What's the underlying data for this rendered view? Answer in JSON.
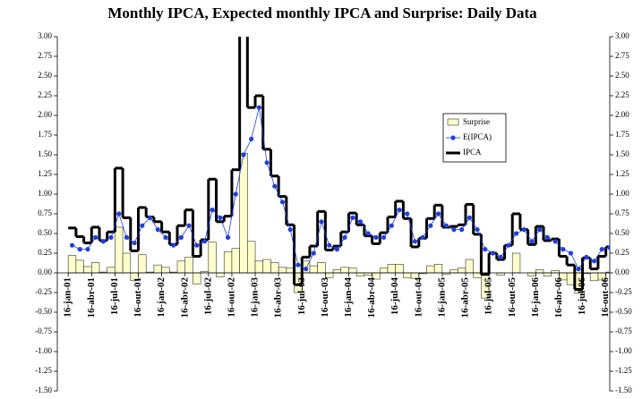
{
  "chart_data": {
    "type": "step-combo",
    "title": "Monthly IPCA, Expected monthly IPCA and Surprise: Daily Data",
    "x": [
      0,
      1,
      2,
      3,
      4,
      5,
      6,
      7,
      8,
      9,
      10,
      11,
      12,
      13,
      14,
      15,
      16,
      17,
      18,
      19,
      20,
      21,
      22,
      23,
      24,
      25,
      26,
      27,
      28,
      29,
      30,
      31,
      32,
      33,
      34,
      35,
      36,
      37,
      38,
      39,
      40,
      41,
      42,
      43,
      44,
      45,
      46,
      47,
      48,
      49,
      50,
      51,
      52,
      53,
      54,
      55,
      56,
      57,
      58,
      59,
      60,
      61,
      62,
      63,
      64,
      65,
      66,
      67,
      68,
      69
    ],
    "xlim": [
      -1.4,
      69.5
    ],
    "xticks": [
      {
        "value": 0,
        "label": "16-jan-01"
      },
      {
        "value": 3,
        "label": "16-abr-01"
      },
      {
        "value": 6,
        "label": "16-jul-01"
      },
      {
        "value": 9,
        "label": "16-out-01"
      },
      {
        "value": 12,
        "label": "16-jan-02"
      },
      {
        "value": 15,
        "label": "16-abr-02"
      },
      {
        "value": 18,
        "label": "16-jul-02"
      },
      {
        "value": 21,
        "label": "16-out-02"
      },
      {
        "value": 24,
        "label": "16-jan-03"
      },
      {
        "value": 27,
        "label": "16-abr-03"
      },
      {
        "value": 30,
        "label": "16-jul-03"
      },
      {
        "value": 33,
        "label": "16-out-03"
      },
      {
        "value": 36,
        "label": "16-jan-04"
      },
      {
        "value": 39,
        "label": "16-abr-04"
      },
      {
        "value": 42,
        "label": "16-jul-04"
      },
      {
        "value": 45,
        "label": "16-out-04"
      },
      {
        "value": 48,
        "label": "16-jan-05"
      },
      {
        "value": 51,
        "label": "16-abr-05"
      },
      {
        "value": 54,
        "label": "16-jul-05"
      },
      {
        "value": 57,
        "label": "16-out-05"
      },
      {
        "value": 60,
        "label": "16-jan-06"
      },
      {
        "value": 63,
        "label": "16-abr-06"
      },
      {
        "value": 66,
        "label": "16-jul-06"
      },
      {
        "value": 69,
        "label": "16-out-06"
      }
    ],
    "ylim": [
      -1.5,
      3
    ],
    "yticks": [
      {
        "value": -1.5,
        "label": "-1.50"
      },
      {
        "value": -1.25,
        "label": "-1.25"
      },
      {
        "value": -1,
        "label": "-1.00"
      },
      {
        "value": -0.75,
        "label": "-0.75"
      },
      {
        "value": -0.5,
        "label": "-0.50"
      },
      {
        "value": -0.25,
        "label": "-0.25"
      },
      {
        "value": 0,
        "label": "0.00"
      },
      {
        "value": 0.25,
        "label": "0.25"
      },
      {
        "value": 0.5,
        "label": "0.50"
      },
      {
        "value": 0.75,
        "label": "0.75"
      },
      {
        "value": 1,
        "label": "1.00"
      },
      {
        "value": 1.25,
        "label": "1.25"
      },
      {
        "value": 1.5,
        "label": "1.50"
      },
      {
        "value": 1.75,
        "label": "1.75"
      },
      {
        "value": 2,
        "label": "2.00"
      },
      {
        "value": 2.25,
        "label": "2.25"
      },
      {
        "value": 2.5,
        "label": "2.50"
      },
      {
        "value": 2.75,
        "label": "2.75"
      },
      {
        "value": 3,
        "label": "3.00"
      }
    ],
    "series": [
      {
        "name": "Surprise",
        "color": "#ffffcc",
        "values": [
          0.22,
          0.16,
          0.08,
          0.13,
          0.01,
          0.07,
          0.58,
          0.25,
          -0.1,
          0.23,
          0.01,
          0.1,
          0.07,
          0.01,
          0.15,
          0.2,
          -0.14,
          0.02,
          0.39,
          -0.05,
          0.27,
          0.31,
          1.52,
          0.4,
          0.15,
          0.17,
          0.13,
          0.07,
          0.06,
          -0.25,
          0.15,
          0.09,
          0.13,
          -0.06,
          0.04,
          0.07,
          0.06,
          -0.04,
          -0.03,
          -0.08,
          0.06,
          0.11,
          0.11,
          -0.06,
          -0.07,
          -0.01,
          0.09,
          0.11,
          -0.02,
          0.04,
          0.06,
          0.17,
          -0.06,
          -0.32,
          0.0,
          -0.03,
          0.0,
          0.25,
          0.0,
          -0.04,
          0.04,
          -0.04,
          0.03,
          -0.09,
          -0.15,
          -0.26,
          -0.01,
          -0.1,
          -0.09,
          0.01
        ]
      },
      {
        "name": "E(IPCA)",
        "color": "#1f3fe0",
        "values": [
          0.35,
          0.3,
          0.3,
          0.45,
          0.4,
          0.45,
          0.75,
          0.45,
          0.38,
          0.6,
          0.7,
          0.55,
          0.45,
          0.35,
          0.45,
          0.6,
          0.35,
          0.4,
          0.8,
          0.7,
          0.45,
          1.0,
          1.5,
          1.7,
          2.1,
          1.4,
          1.1,
          0.9,
          0.55,
          0.1,
          0.05,
          0.25,
          0.65,
          0.35,
          0.3,
          0.45,
          0.7,
          0.65,
          0.5,
          0.45,
          0.45,
          0.6,
          0.8,
          0.75,
          0.4,
          0.45,
          0.6,
          0.75,
          0.6,
          0.55,
          0.55,
          0.7,
          0.55,
          0.3,
          0.25,
          0.2,
          0.35,
          0.5,
          0.55,
          0.4,
          0.55,
          0.45,
          0.4,
          0.3,
          0.25,
          0.05,
          0.2,
          0.15,
          0.3,
          0.32
        ]
      },
      {
        "name": "IPCA",
        "color": "#000000",
        "values": [
          0.57,
          0.46,
          0.38,
          0.58,
          0.41,
          0.52,
          1.33,
          0.7,
          0.28,
          0.83,
          0.71,
          0.65,
          0.52,
          0.36,
          0.6,
          0.8,
          0.21,
          0.42,
          1.19,
          0.65,
          0.72,
          1.31,
          3.02,
          2.1,
          2.25,
          1.57,
          1.23,
          0.97,
          0.61,
          -0.15,
          0.2,
          0.34,
          0.78,
          0.29,
          0.34,
          0.52,
          0.76,
          0.61,
          0.47,
          0.37,
          0.51,
          0.71,
          0.91,
          0.69,
          0.33,
          0.44,
          0.69,
          0.86,
          0.58,
          0.59,
          0.61,
          0.87,
          0.49,
          -0.02,
          0.25,
          0.17,
          0.35,
          0.75,
          0.55,
          0.36,
          0.59,
          0.41,
          0.43,
          0.21,
          0.1,
          -0.21,
          0.19,
          0.05,
          0.21,
          0.33
        ]
      }
    ]
  }
}
